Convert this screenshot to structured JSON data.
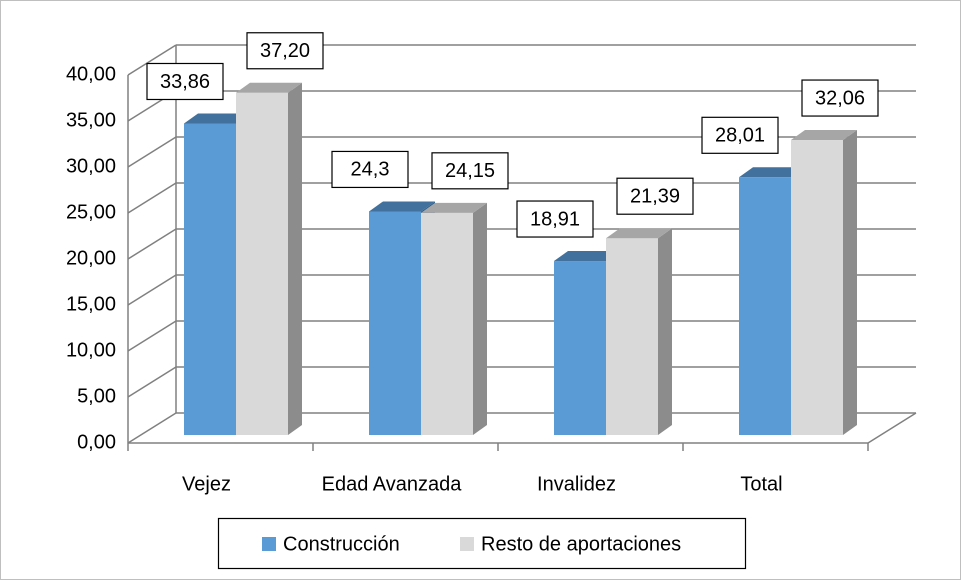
{
  "chart_data": {
    "type": "bar3d",
    "categories": [
      "Vejez",
      "Edad Avanzada",
      "Invalidez",
      "Total"
    ],
    "series": [
      {
        "name": "Construcción",
        "color": "#5b9bd5",
        "values": [
          33.86,
          24.3,
          18.91,
          28.01
        ],
        "value_labels": [
          "33,86",
          "24,3",
          "18,91",
          "28,01"
        ]
      },
      {
        "name": "Resto de aportaciones",
        "color": "#d9d9d9",
        "values": [
          37.2,
          24.15,
          21.39,
          32.06
        ],
        "value_labels": [
          "37,20",
          "24,15",
          "21,39",
          "32,06"
        ]
      }
    ],
    "ylim": [
      0,
      40
    ],
    "yticks": [
      {
        "value": 0,
        "label": "0,00"
      },
      {
        "value": 5,
        "label": "5,00"
      },
      {
        "value": 10,
        "label": "10,00"
      },
      {
        "value": 15,
        "label": "15,00"
      },
      {
        "value": 20,
        "label": "20,00"
      },
      {
        "value": 25,
        "label": "25,00"
      },
      {
        "value": 30,
        "label": "30,00"
      },
      {
        "value": 35,
        "label": "35,00"
      },
      {
        "value": 40,
        "label": "40,00"
      }
    ],
    "grid": true,
    "legend": "bottom"
  }
}
